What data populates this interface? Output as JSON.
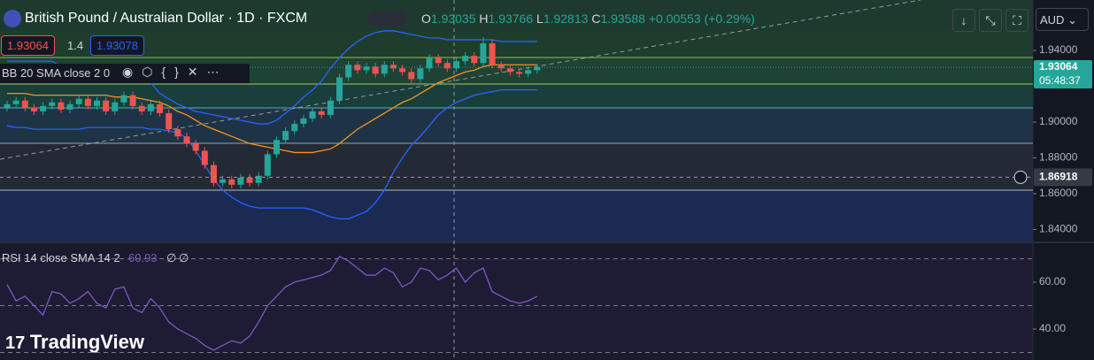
{
  "header": {
    "symbol": "British Pound / Australian Dollar · 1D · FXCM",
    "o_label": "O",
    "open": "1.93035",
    "h_label": "H",
    "high": "1.93766",
    "l_label": "L",
    "low": "1.92813",
    "c_label": "C",
    "close": "1.93588",
    "change": "+0.00553 (+0.29%)",
    "sell": "1.93064",
    "spread": "1.4",
    "buy": "1.93078",
    "currency": "AUD",
    "bb_legend": "BB 20 SMA close 2 0",
    "rsi_legend": "RSI 14 close SMA 14 2",
    "rsi_value": "60.93",
    "rsi_na1": "∅",
    "rsi_na2": "∅",
    "logo": "TradingView"
  },
  "chart_data": [
    {
      "type": "candlestick",
      "up_color": "#26a69a",
      "down_color": "#ef5350",
      "ylim": [
        1.8333,
        1.9682
      ],
      "yticks": [
        {
          "value": 1.94,
          "label": "1.94000"
        },
        {
          "value": 1.9,
          "label": "1.90000"
        },
        {
          "value": 1.88,
          "label": "1.88000"
        },
        {
          "value": 1.86,
          "label": "1.86000"
        },
        {
          "value": 1.84,
          "label": "1.84000"
        }
      ],
      "open": [
        1.908,
        1.91,
        1.912,
        1.908,
        1.906,
        1.909,
        1.911,
        1.907,
        1.91,
        1.913,
        1.909,
        1.912,
        1.906,
        1.911,
        1.915,
        1.909,
        1.906,
        1.91,
        1.905,
        1.896,
        1.892,
        1.888,
        1.884,
        1.876,
        1.866,
        1.868,
        1.865,
        1.869,
        1.866,
        1.87,
        1.882,
        1.89,
        1.895,
        1.899,
        1.902,
        1.906,
        1.904,
        1.912,
        1.925,
        1.932,
        1.929,
        1.931,
        1.927,
        1.932,
        1.93,
        1.928,
        1.924,
        1.93,
        1.936,
        1.933,
        1.93,
        1.934,
        1.937,
        1.933,
        1.944,
        1.932,
        1.93,
        1.928,
        1.927,
        1.929
      ],
      "high": [
        1.912,
        1.914,
        1.914,
        1.91,
        1.911,
        1.913,
        1.913,
        1.912,
        1.915,
        1.915,
        1.914,
        1.914,
        1.913,
        1.917,
        1.917,
        1.911,
        1.912,
        1.912,
        1.907,
        1.898,
        1.894,
        1.89,
        1.886,
        1.878,
        1.87,
        1.87,
        1.871,
        1.871,
        1.872,
        1.884,
        1.892,
        1.897,
        1.901,
        1.904,
        1.908,
        1.908,
        1.914,
        1.927,
        1.934,
        1.934,
        1.933,
        1.933,
        1.934,
        1.934,
        1.932,
        1.93,
        1.932,
        1.938,
        1.938,
        1.935,
        1.936,
        1.939,
        1.939,
        1.9475,
        1.946,
        1.934,
        1.932,
        1.93,
        1.931,
        1.9325
      ],
      "low": [
        1.906,
        1.908,
        1.906,
        1.904,
        1.904,
        1.907,
        1.905,
        1.905,
        1.908,
        1.907,
        1.907,
        1.904,
        1.904,
        1.909,
        1.907,
        1.904,
        1.904,
        1.903,
        1.894,
        1.89,
        1.886,
        1.882,
        1.874,
        1.864,
        1.864,
        1.863,
        1.863,
        1.864,
        1.864,
        1.868,
        1.88,
        1.888,
        1.893,
        1.897,
        1.9,
        1.902,
        1.902,
        1.91,
        1.923,
        1.927,
        1.927,
        1.925,
        1.925,
        1.928,
        1.926,
        1.922,
        1.922,
        1.928,
        1.931,
        1.928,
        1.928,
        1.932,
        1.931,
        1.931,
        1.93,
        1.928,
        1.926,
        1.925,
        1.925,
        1.927
      ],
      "close": [
        1.91,
        1.912,
        1.908,
        1.906,
        1.909,
        1.911,
        1.907,
        1.91,
        1.913,
        1.909,
        1.912,
        1.906,
        1.911,
        1.915,
        1.909,
        1.906,
        1.91,
        1.905,
        1.896,
        1.892,
        1.888,
        1.884,
        1.876,
        1.866,
        1.868,
        1.865,
        1.869,
        1.866,
        1.87,
        1.882,
        1.89,
        1.895,
        1.899,
        1.902,
        1.906,
        1.904,
        1.912,
        1.925,
        1.932,
        1.929,
        1.931,
        1.927,
        1.932,
        1.93,
        1.928,
        1.924,
        1.93,
        1.936,
        1.933,
        1.93,
        1.934,
        1.937,
        1.933,
        1.944,
        1.932,
        1.93,
        1.928,
        1.927,
        1.929,
        1.93064
      ],
      "bands": [
        {
          "color": "#2962ff",
          "values": [
            1.934,
            1.934,
            1.934,
            1.934,
            1.934,
            1.934,
            1.931,
            1.931,
            1.931,
            1.931,
            1.931,
            1.931,
            1.931,
            1.924,
            1.924,
            1.924,
            1.922,
            1.916,
            1.913,
            1.91,
            1.908,
            1.906,
            1.905,
            1.904,
            1.903,
            1.902,
            1.901,
            1.9,
            1.899,
            1.899,
            1.901,
            1.905,
            1.909,
            1.914,
            1.918,
            1.923,
            1.93,
            1.936,
            1.941,
            1.945,
            1.948,
            1.95,
            1.951,
            1.951,
            1.95,
            1.949,
            1.948,
            1.947,
            1.947,
            1.946,
            1.946,
            1.946,
            1.946,
            1.946,
            1.946,
            1.945,
            1.945,
            1.945,
            1.945,
            1.945
          ]
        },
        {
          "color": "#f7931a",
          "values": [
            1.916,
            1.916,
            1.916,
            1.915,
            1.915,
            1.915,
            1.915,
            1.915,
            1.915,
            1.915,
            1.915,
            1.915,
            1.914,
            1.914,
            1.914,
            1.913,
            1.912,
            1.911,
            1.909,
            1.906,
            1.904,
            1.901,
            1.898,
            1.896,
            1.894,
            1.892,
            1.89,
            1.888,
            1.887,
            1.886,
            1.885,
            1.884,
            1.883,
            1.883,
            1.883,
            1.884,
            1.885,
            1.888,
            1.892,
            1.896,
            1.899,
            1.902,
            1.905,
            1.908,
            1.911,
            1.913,
            1.916,
            1.919,
            1.922,
            1.924,
            1.926,
            1.928,
            1.929,
            1.931,
            1.932,
            1.932,
            1.932,
            1.932,
            1.932,
            1.932
          ]
        },
        {
          "color": "#2962ff",
          "values": [
            1.898,
            1.897,
            1.897,
            1.896,
            1.896,
            1.896,
            1.896,
            1.896,
            1.896,
            1.897,
            1.897,
            1.897,
            1.897,
            1.897,
            1.897,
            1.897,
            1.896,
            1.896,
            1.895,
            1.894,
            1.891,
            1.884,
            1.876,
            1.868,
            1.862,
            1.858,
            1.855,
            1.853,
            1.852,
            1.852,
            1.852,
            1.852,
            1.852,
            1.852,
            1.851,
            1.849,
            1.847,
            1.846,
            1.846,
            1.848,
            1.85,
            1.855,
            1.862,
            1.872,
            1.88,
            1.887,
            1.892,
            1.898,
            1.904,
            1.908,
            1.911,
            1.913,
            1.915,
            1.916,
            1.917,
            1.918,
            1.918,
            1.918,
            1.918,
            1.918
          ]
        }
      ],
      "last_price": 1.93064,
      "countdown": "05:48:37",
      "crosshair_price": 1.86918
    },
    {
      "type": "line",
      "color": "#7e57c2",
      "ylim": [
        26.8,
        76.6
      ],
      "yticks": [
        {
          "value": 60,
          "label": "60.00"
        },
        {
          "value": 40,
          "label": "40.00"
        }
      ],
      "levels": [
        70,
        50,
        30
      ],
      "values": [
        59,
        52,
        54,
        50,
        46,
        56,
        55,
        51,
        53,
        56,
        51,
        49,
        57,
        58,
        49,
        47,
        53,
        49,
        43,
        40,
        38,
        36,
        33,
        31,
        33,
        35,
        34,
        37,
        43,
        50,
        54,
        58,
        60,
        61,
        62,
        63,
        65,
        71,
        69,
        66,
        63,
        63,
        66,
        64,
        58,
        60,
        66,
        65,
        61,
        63,
        66,
        60,
        64,
        66,
        56,
        54,
        52,
        51,
        52,
        54
      ]
    }
  ]
}
